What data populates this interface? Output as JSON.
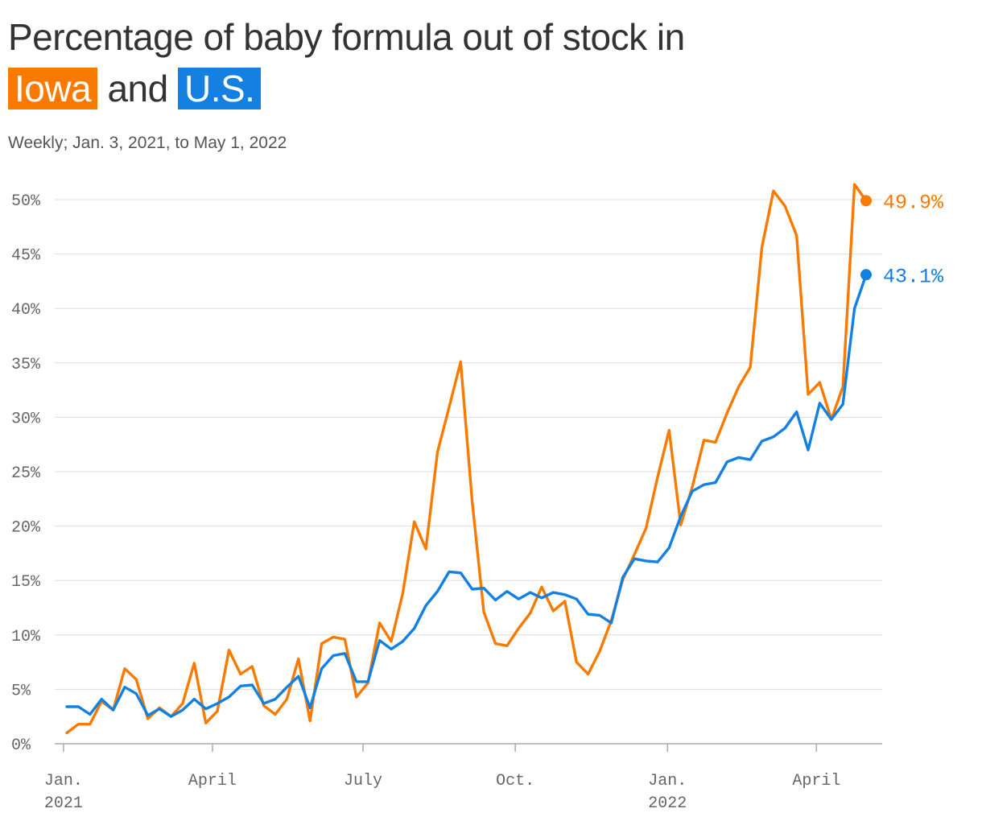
{
  "header": {
    "title_line1": "Percentage of baby formula out of stock in",
    "iowa": "Iowa",
    "and": "and",
    "us": "U.S.",
    "subtitle": "Weekly; Jan. 3, 2021, to May 1, 2022"
  },
  "colors": {
    "iowa": "#f87a00",
    "us": "#1380e2",
    "grid": "#dddddd",
    "axis": "#aaaaaa"
  },
  "chart_data": {
    "type": "line",
    "x_start": "2021-01-03",
    "x_step": "1 week",
    "y_ticks": [
      "0%",
      "5%",
      "10%",
      "15%",
      "20%",
      "25%",
      "30%",
      "35%",
      "40%",
      "45%",
      "50%"
    ],
    "ylim": [
      0,
      50
    ],
    "x_ticks": [
      {
        "date": "2021-01-01",
        "line1": "Jan.",
        "line2": "2021"
      },
      {
        "date": "2021-04-01",
        "line1": "April",
        "line2": ""
      },
      {
        "date": "2021-07-01",
        "line1": "July",
        "line2": ""
      },
      {
        "date": "2021-10-01",
        "line1": "Oct.",
        "line2": ""
      },
      {
        "date": "2022-01-01",
        "line1": "Jan.",
        "line2": "2022"
      },
      {
        "date": "2022-04-01",
        "line1": "April",
        "line2": ""
      }
    ],
    "series": [
      {
        "name": "Iowa",
        "end_label": "49.9%",
        "values": [
          1.0,
          1.8,
          1.8,
          3.9,
          3.1,
          6.9,
          5.9,
          2.3,
          3.3,
          2.5,
          3.7,
          7.4,
          1.9,
          3.0,
          8.6,
          6.4,
          7.1,
          3.5,
          2.7,
          4.1,
          7.8,
          2.1,
          9.2,
          9.8,
          9.6,
          4.3,
          5.6,
          11.1,
          9.4,
          13.8,
          20.4,
          17.9,
          26.8,
          30.9,
          35.1,
          22.2,
          12.1,
          9.2,
          9.0,
          10.6,
          12.0,
          14.4,
          12.2,
          13.1,
          7.5,
          6.4,
          8.5,
          11.3,
          15.1,
          17.4,
          19.8,
          24.5,
          28.8,
          20.1,
          23.6,
          27.9,
          27.7,
          30.4,
          32.8,
          34.6,
          45.6,
          50.8,
          49.4,
          46.7,
          32.1,
          33.2,
          29.8,
          32.8,
          51.4,
          49.9
        ]
      },
      {
        "name": "U.S.",
        "end_label": "43.1%",
        "values": [
          3.4,
          3.4,
          2.7,
          4.1,
          3.1,
          5.2,
          4.6,
          2.6,
          3.2,
          2.5,
          3.1,
          4.1,
          3.2,
          3.7,
          4.3,
          5.3,
          5.4,
          3.7,
          4.1,
          5.2,
          6.2,
          3.3,
          6.9,
          8.1,
          8.3,
          5.7,
          5.7,
          9.5,
          8.7,
          9.4,
          10.6,
          12.7,
          14.0,
          15.8,
          15.7,
          14.2,
          14.3,
          13.2,
          14.0,
          13.3,
          13.9,
          13.4,
          13.9,
          13.7,
          13.3,
          11.9,
          11.8,
          11.1,
          15.3,
          17.0,
          16.8,
          16.7,
          18.0,
          20.9,
          23.2,
          23.8,
          24.0,
          25.9,
          26.3,
          26.1,
          27.8,
          28.2,
          29.0,
          30.5,
          27.0,
          31.3,
          29.8,
          31.2,
          40.0,
          43.1
        ]
      }
    ]
  }
}
